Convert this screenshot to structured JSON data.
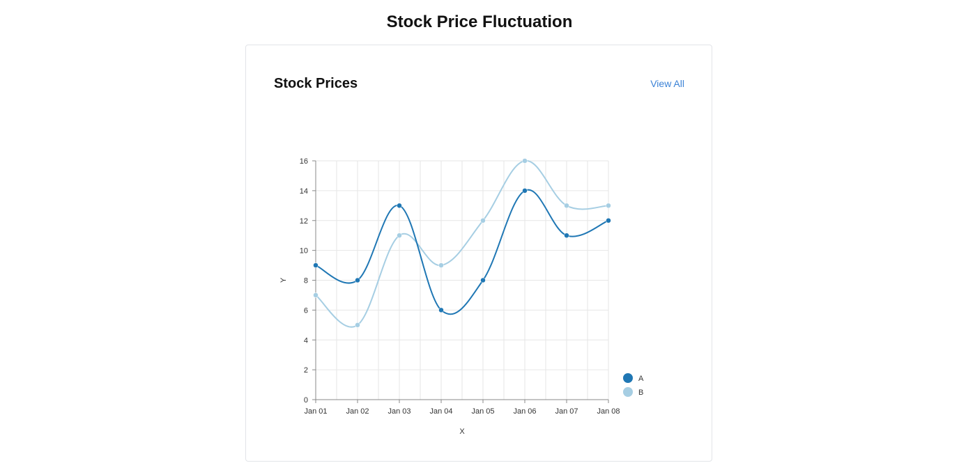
{
  "page": {
    "title": "Stock Price Fluctuation"
  },
  "card": {
    "title": "Stock Prices",
    "view_all_label": "View All"
  },
  "chart_data": {
    "type": "line",
    "x": [
      "Jan 01",
      "Jan 02",
      "Jan 03",
      "Jan 04",
      "Jan 05",
      "Jan 06",
      "Jan 07",
      "Jan 08"
    ],
    "series": [
      {
        "name": "A",
        "color": "#1f77b4",
        "values": [
          9,
          8,
          13,
          6,
          8,
          14,
          11,
          12
        ]
      },
      {
        "name": "B",
        "color": "#a6cee3",
        "values": [
          7,
          5,
          11,
          9,
          12,
          16,
          13,
          13
        ]
      }
    ],
    "xlabel": "X",
    "ylabel": "Y",
    "ylim": [
      0,
      16
    ],
    "yticks": [
      0,
      2,
      4,
      6,
      8,
      10,
      12,
      14,
      16
    ],
    "grid": true,
    "curve": "smooth",
    "legend_position": "bottom-right"
  }
}
